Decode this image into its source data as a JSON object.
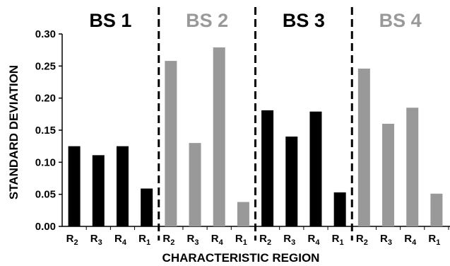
{
  "chart_data": {
    "type": "bar",
    "xlabel": "CHARACTERISTIC REGION",
    "ylabel": "STANDARD DEVIATION",
    "ylim": [
      0,
      0.3
    ],
    "yticks": [
      "0.00",
      "0.05",
      "0.10",
      "0.15",
      "0.20",
      "0.25",
      "0.30"
    ],
    "grid": false,
    "legend": "none",
    "groups": [
      {
        "name": "BS 1",
        "color": "#000000",
        "categories": [
          {
            "base": "R",
            "sub": "2"
          },
          {
            "base": "R",
            "sub": "3"
          },
          {
            "base": "R",
            "sub": "4"
          },
          {
            "base": "R",
            "sub": "1"
          }
        ],
        "values": [
          0.125,
          0.111,
          0.125,
          0.059
        ]
      },
      {
        "name": "BS 2",
        "color": "#999999",
        "categories": [
          {
            "base": "R",
            "sub": "2"
          },
          {
            "base": "R",
            "sub": "3"
          },
          {
            "base": "R",
            "sub": "4"
          },
          {
            "base": "R",
            "sub": "1"
          }
        ],
        "values": [
          0.258,
          0.13,
          0.279,
          0.038
        ]
      },
      {
        "name": "BS 3",
        "color": "#000000",
        "categories": [
          {
            "base": "R",
            "sub": "2"
          },
          {
            "base": "R",
            "sub": "3"
          },
          {
            "base": "R",
            "sub": "4"
          },
          {
            "base": "R",
            "sub": "1"
          }
        ],
        "values": [
          0.181,
          0.14,
          0.179,
          0.053
        ]
      },
      {
        "name": "BS 4",
        "color": "#999999",
        "categories": [
          {
            "base": "R",
            "sub": "2"
          },
          {
            "base": "R",
            "sub": "3"
          },
          {
            "base": "R",
            "sub": "4"
          },
          {
            "base": "R",
            "sub": "1"
          }
        ],
        "values": [
          0.246,
          0.16,
          0.185,
          0.051
        ]
      }
    ]
  }
}
